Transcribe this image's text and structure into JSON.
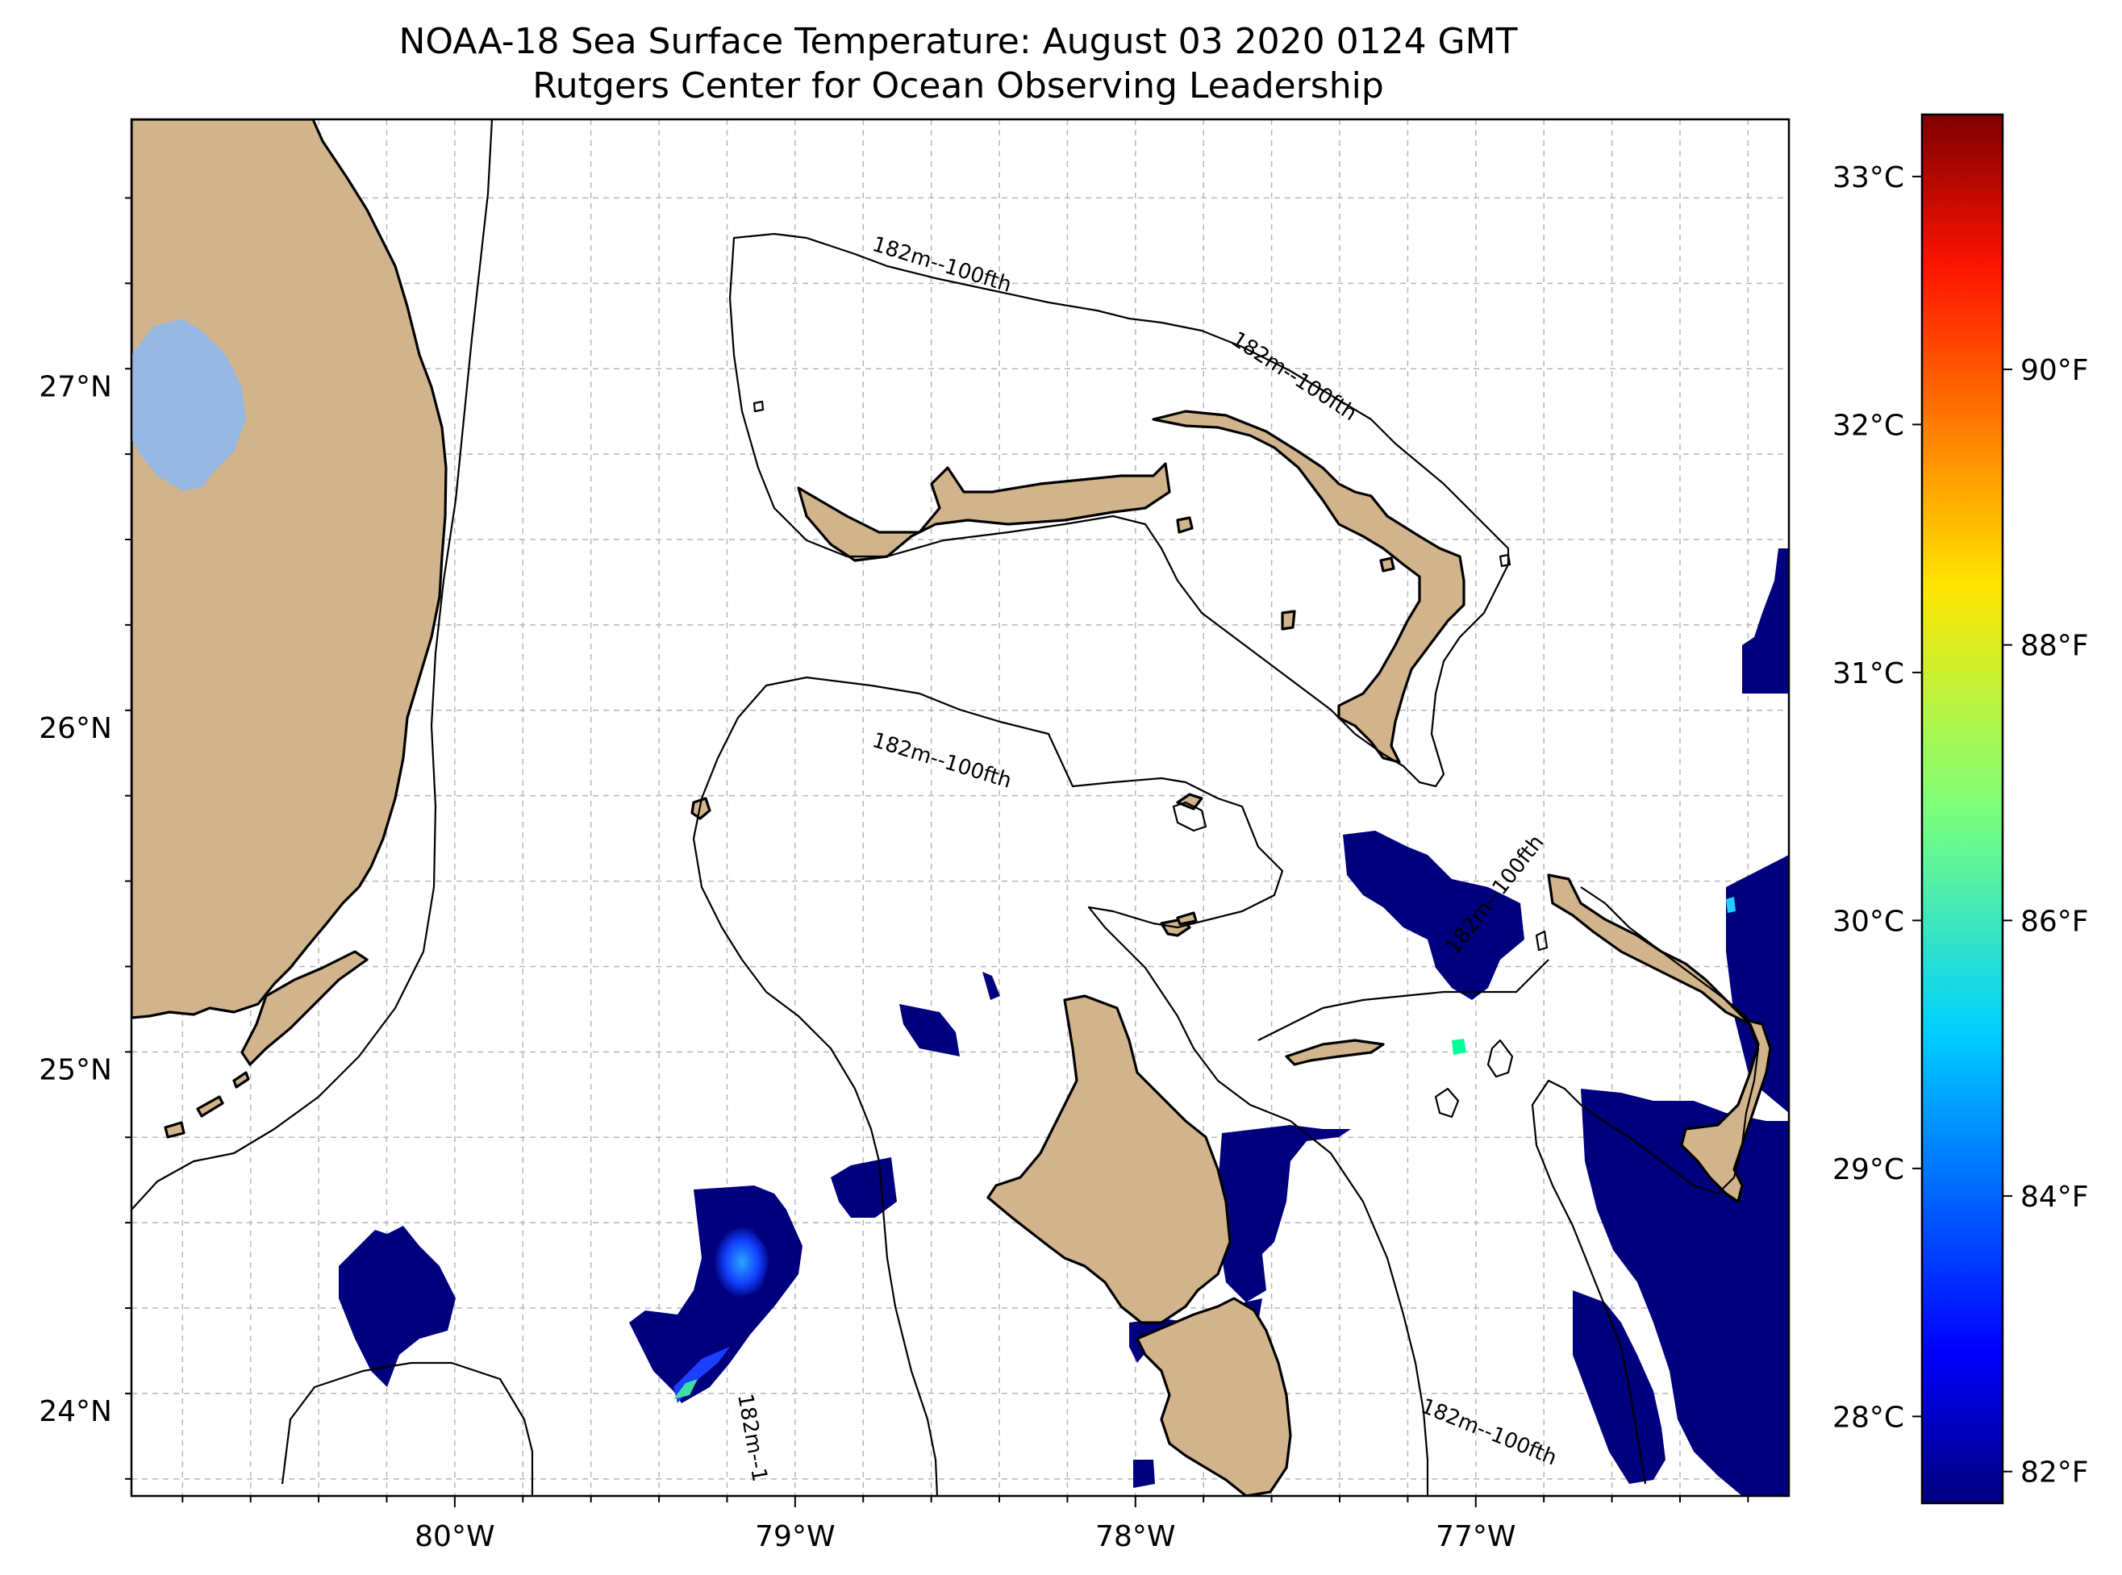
{
  "title": {
    "line1": "NOAA-18 Sea Surface Temperature: August 03 2020 0124 GMT",
    "line2": "Rutgers Center for Ocean Observing Leadership"
  },
  "map": {
    "lon_range": [
      -80.95,
      -76.08
    ],
    "lat_range": [
      23.75,
      27.78
    ],
    "lon_ticks": [
      {
        "value": -80,
        "label": "80°W"
      },
      {
        "value": -79,
        "label": "79°W"
      },
      {
        "value": -78,
        "label": "78°W"
      },
      {
        "value": -77,
        "label": "77°W"
      }
    ],
    "lat_ticks": [
      {
        "value": 24,
        "label": "24°N"
      },
      {
        "value": 25,
        "label": "25°N"
      },
      {
        "value": 26,
        "label": "26°N"
      },
      {
        "value": 27,
        "label": "27°N"
      }
    ],
    "gridlines": true,
    "land_color": "#d2b48c",
    "lake_color": "#96b8e3",
    "isobath_labels": [
      "182m--100fth",
      "182m--100fth",
      "182m--100fth",
      "182m--100fth",
      "182m--100fth",
      "182m--1"
    ]
  },
  "chart_data": {
    "type": "heatmap",
    "title": "NOAA-18 Sea Surface Temperature: August 03 2020 0124 GMT",
    "subtitle": "Rutgers Center for Ocean Observing Leadership",
    "colormap": "jet",
    "colorbar": {
      "celsius_ticks": [
        {
          "value": 28,
          "label": "28°C"
        },
        {
          "value": 29,
          "label": "29°C"
        },
        {
          "value": 30,
          "label": "30°C"
        },
        {
          "value": 31,
          "label": "31°C"
        },
        {
          "value": 32,
          "label": "32°C"
        },
        {
          "value": 33,
          "label": "33°C"
        }
      ],
      "fahrenheit_ticks": [
        {
          "value": 82,
          "label": "82°F"
        },
        {
          "value": 84,
          "label": "84°F"
        },
        {
          "value": 86,
          "label": "86°F"
        },
        {
          "value": 88,
          "label": "88°F"
        },
        {
          "value": 90,
          "label": "90°F"
        }
      ],
      "range_celsius": [
        27.65,
        33.25
      ]
    },
    "observed_sst_celsius": "mostly ~27.7 (coldest color) in patches; small spots up to ~29.5"
  }
}
